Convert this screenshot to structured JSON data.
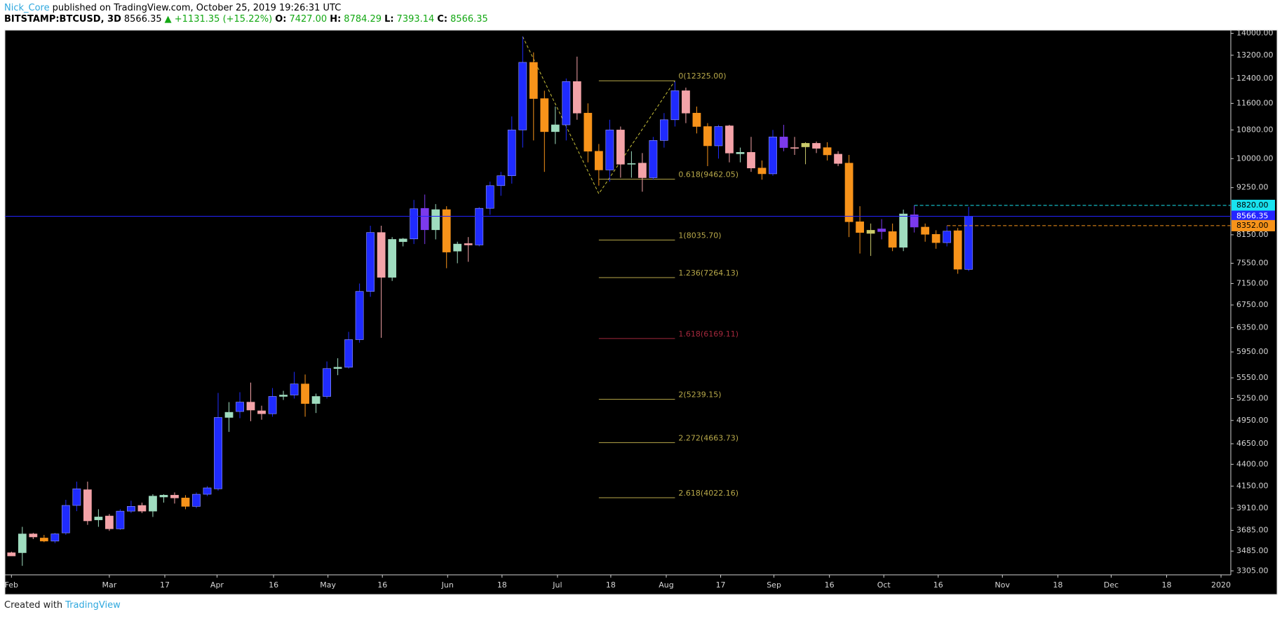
{
  "header": {
    "author": "Nick_Core",
    "published": "published on TradingView.com, October 25, 2019 19:26:31 UTC",
    "symbol": "BITSTAMP:BTCUSD, 3D",
    "price": "8566.35",
    "change": "▲ +1131.35 (+15.22%)",
    "o_label": "O:",
    "o": "7427.00",
    "h_label": "H:",
    "h": "8784.29",
    "l_label": "L:",
    "l": "7393.14",
    "c_label": "C:",
    "c": "8566.35"
  },
  "footer": {
    "created": "Created with",
    "brand": "TradingView"
  },
  "chart_data": {
    "type": "candlestick",
    "log_scale": true,
    "grid": false,
    "open": [
      3470,
      3470,
      3650,
      3610,
      3580,
      3660,
      3940,
      4110,
      3790,
      3830,
      3700,
      3880,
      3940,
      3880,
      4030,
      4050,
      4020,
      3930,
      4060,
      4120,
      4990,
      5070,
      5200,
      5080,
      5040,
      5280,
      5300,
      5460,
      5180,
      5280,
      5690,
      5710,
      6150,
      7000,
      8200,
      7270,
      8000,
      8060,
      8750,
      8260,
      8720,
      7800,
      7960,
      7930,
      8750,
      9300,
      9550,
      10800,
      12950,
      11750,
      10750,
      10950,
      12300,
      11300,
      10200,
      9700,
      10800,
      9850,
      9880,
      9500,
      10500,
      11100,
      12000,
      11300,
      10900,
      10350,
      10920,
      10130,
      10170,
      9750,
      9600,
      10600,
      10300,
      10320,
      10420,
      10300,
      10120,
      9880,
      8440,
      8180,
      8280,
      8220,
      7880,
      8600,
      8320,
      8160,
      7980,
      8240,
      7427
    ],
    "high": [
      3480,
      3720,
      3660,
      3640,
      3660,
      4000,
      4200,
      4200,
      3900,
      3850,
      3900,
      3990,
      3970,
      4060,
      4060,
      4080,
      4050,
      4080,
      4150,
      5330,
      5200,
      5340,
      5480,
      5150,
      5400,
      5360,
      5640,
      5600,
      5320,
      5800,
      5850,
      6280,
      7150,
      8350,
      8350,
      8100,
      8080,
      8950,
      9080,
      8850,
      8800,
      8000,
      8100,
      8780,
      9400,
      9650,
      11200,
      13880,
      13300,
      12000,
      11500,
      12400,
      13150,
      11600,
      10400,
      11100,
      10900,
      10200,
      10150,
      10600,
      11300,
      12300,
      12100,
      11500,
      11000,
      10950,
      10950,
      10300,
      10600,
      9950,
      10800,
      10950,
      10600,
      10450,
      10470,
      10450,
      10200,
      10100,
      8800,
      8400,
      8500,
      8400,
      8720,
      8820,
      8400,
      8250,
      8350,
      8300,
      8784.29
    ],
    "low": [
      3440,
      3350,
      3600,
      3570,
      3560,
      3640,
      3880,
      3740,
      3720,
      3680,
      3690,
      3860,
      3860,
      3820,
      3970,
      3960,
      3900,
      3910,
      4040,
      4100,
      4800,
      4980,
      4940,
      4960,
      5000,
      5230,
      5250,
      5000,
      5050,
      5250,
      5590,
      5690,
      6100,
      6900,
      6180,
      7200,
      7900,
      7950,
      7950,
      8050,
      7450,
      7550,
      7580,
      7900,
      8600,
      9050,
      9350,
      10300,
      10500,
      9650,
      10400,
      10500,
      11100,
      9900,
      9300,
      9400,
      9500,
      9500,
      9150,
      9450,
      10300,
      10900,
      11000,
      10700,
      9800,
      10000,
      9900,
      9900,
      9650,
      9450,
      9550,
      10200,
      10100,
      9850,
      10150,
      9950,
      9800,
      8100,
      7750,
      7700,
      8050,
      7800,
      7800,
      8200,
      8000,
      7850,
      7900,
      7340,
      7393.14
    ],
    "close": [
      3440,
      3650,
      3620,
      3580,
      3650,
      3940,
      4120,
      3780,
      3820,
      3700,
      3880,
      3930,
      3880,
      4040,
      4050,
      4020,
      3930,
      4060,
      4130,
      4990,
      5060,
      5200,
      5090,
      5040,
      5280,
      5300,
      5460,
      5180,
      5280,
      5690,
      5710,
      6150,
      7000,
      8200,
      7270,
      8050,
      8060,
      8740,
      8260,
      8720,
      7780,
      7950,
      7930,
      8750,
      9300,
      9550,
      10800,
      12950,
      11750,
      10750,
      10950,
      12300,
      11300,
      10200,
      9700,
      10800,
      9850,
      9870,
      9500,
      10500,
      11100,
      12000,
      11300,
      10900,
      10350,
      10900,
      10150,
      10170,
      9750,
      9600,
      10600,
      10300,
      10280,
      10420,
      10280,
      10100,
      9870,
      8440,
      8200,
      8250,
      8220,
      7880,
      8620,
      8320,
      8160,
      7980,
      8230,
      7430,
      8566.35
    ],
    "colors": [
      "#f4a3a8",
      "#9fdcbf",
      "#f4a3a8",
      "#f7931a",
      "#1f2bff",
      "#1f2bff",
      "#1f2bff",
      "#f4a3a8",
      "#9fdcbf",
      "#f4a3a8",
      "#1f2bff",
      "#1f2bff",
      "#f4a3a8",
      "#9fdcbf",
      "#9fdcbf",
      "#f4a3a8",
      "#f7931a",
      "#1f2bff",
      "#1f2bff",
      "#1f2bff",
      "#9fdcbf",
      "#1f2bff",
      "#f4a3a8",
      "#f4a3a8",
      "#1f2bff",
      "#9fdcbf",
      "#1f2bff",
      "#f7931a",
      "#9fdcbf",
      "#1f2bff",
      "#9fdcbf",
      "#1f2bff",
      "#1f2bff",
      "#1f2bff",
      "#f4a3a8",
      "#9fdcbf",
      "#9fdcbf",
      "#1f2bff",
      "#7c3aed",
      "#9fdcbf",
      "#f7931a",
      "#9fdcbf",
      "#f4a3a8",
      "#1f2bff",
      "#1f2bff",
      "#1f2bff",
      "#1f2bff",
      "#1f2bff",
      "#f7931a",
      "#f7931a",
      "#9fdcbf",
      "#1f2bff",
      "#f4a3a8",
      "#f7931a",
      "#f7931a",
      "#1f2bff",
      "#f4a3a8",
      "#9fdcbf",
      "#f4a3a8",
      "#1f2bff",
      "#1f2bff",
      "#1f2bff",
      "#f4a3a8",
      "#f7931a",
      "#f7931a",
      "#1f2bff",
      "#f4a3a8",
      "#9fdcbf",
      "#f4a3a8",
      "#f7931a",
      "#1f2bff",
      "#7c3aed",
      "#f4a3a8",
      "#c9c96a",
      "#f4a3a8",
      "#f7931a",
      "#f4a3a8",
      "#f7931a",
      "#f7931a",
      "#c9c96a",
      "#7c3aed",
      "#f7931a",
      "#9fdcbf",
      "#7c3aed",
      "#f7931a",
      "#f7931a",
      "#1f2bff",
      "#f7931a",
      "#1f2bff"
    ],
    "ylim": [
      3270,
      14120
    ],
    "yticks": [
      {
        "value": 14000,
        "label": "14000.00"
      },
      {
        "value": 13200,
        "label": "13200.00"
      },
      {
        "value": 12400,
        "label": "12400.00"
      },
      {
        "value": 11600,
        "label": "11600.00"
      },
      {
        "value": 10800,
        "label": "10800.00"
      },
      {
        "value": 10000,
        "label": "10000.00"
      },
      {
        "value": 9250,
        "label": "9250.00"
      },
      {
        "value": 8150,
        "label": "8150.00"
      },
      {
        "value": 7550,
        "label": "7550.00"
      },
      {
        "value": 7150,
        "label": "7150.00"
      },
      {
        "value": 6750,
        "label": "6750.00"
      },
      {
        "value": 6350,
        "label": "6350.00"
      },
      {
        "value": 5950,
        "label": "5950.00"
      },
      {
        "value": 5550,
        "label": "5550.00"
      },
      {
        "value": 5250,
        "label": "5250.00"
      },
      {
        "value": 4950,
        "label": "4950.00"
      },
      {
        "value": 4650,
        "label": "4650.00"
      },
      {
        "value": 4400,
        "label": "4400.00"
      },
      {
        "value": 4150,
        "label": "4150.00"
      },
      {
        "value": 3910,
        "label": "3910.00"
      },
      {
        "value": 3685,
        "label": "3685.00"
      },
      {
        "value": 3485,
        "label": "3485.00"
      },
      {
        "value": 3305,
        "label": "3305.00"
      }
    ],
    "xlim": [
      -0.6,
      112.1
    ],
    "xticks": [
      {
        "value": 0,
        "label": "Feb"
      },
      {
        "value": 9.0,
        "label": "Mar"
      },
      {
        "value": 14.1,
        "label": "17"
      },
      {
        "value": 18.9,
        "label": "Apr"
      },
      {
        "value": 24.1,
        "label": "16"
      },
      {
        "value": 29.1,
        "label": "May"
      },
      {
        "value": 34.1,
        "label": "16"
      },
      {
        "value": 40.1,
        "label": "Jun"
      },
      {
        "value": 45.1,
        "label": "18"
      },
      {
        "value": 50.2,
        "label": "Jul"
      },
      {
        "value": 55.1,
        "label": "18"
      },
      {
        "value": 60.2,
        "label": "Aug"
      },
      {
        "value": 65.2,
        "label": "17"
      },
      {
        "value": 70.1,
        "label": "Sep"
      },
      {
        "value": 75.2,
        "label": "16"
      },
      {
        "value": 80.2,
        "label": "Oct"
      },
      {
        "value": 85.2,
        "label": "16"
      },
      {
        "value": 91.1,
        "label": "Nov"
      },
      {
        "value": 96.2,
        "label": "18"
      },
      {
        "value": 101.1,
        "label": "Dec"
      },
      {
        "value": 106.2,
        "label": "18"
      },
      {
        "value": 111.2,
        "label": "2020"
      }
    ],
    "fib": {
      "x": [
        54,
        61
      ],
      "levels": [
        {
          "value": 12325.0,
          "label": "0(12325.00)",
          "color": "#b8a94a"
        },
        {
          "value": 9462.05,
          "label": "0.618(9462.05)",
          "color": "#b8a94a"
        },
        {
          "value": 8035.7,
          "label": "1(8035.70)",
          "color": "#b8a94a"
        },
        {
          "value": 7264.13,
          "label": "1.236(7264.13)",
          "color": "#b8a94a"
        },
        {
          "value": 6169.11,
          "label": "1.618(6169.11)",
          "color": "#a3283c"
        },
        {
          "value": 5239.15,
          "label": "2(5239.15)",
          "color": "#b8a94a"
        },
        {
          "value": 4663.73,
          "label": "2.272(4663.73)",
          "color": "#b8a94a"
        },
        {
          "value": 4022.16,
          "label": "2.618(4022.16)",
          "color": "#b8a94a"
        }
      ]
    },
    "zigzag": {
      "x": [
        47,
        54,
        61
      ],
      "values": [
        13880,
        9100,
        12325
      ],
      "color": "#c9c13a"
    },
    "price_lines": [
      {
        "value": 8820,
        "label": "8820.00",
        "color": "#19e3f0",
        "text_color": "#000000",
        "x": 83,
        "dashed": true
      },
      {
        "value": 8566.35,
        "label": "8566.35",
        "color": "#2424ff",
        "text_color": "#ffffff"
      },
      {
        "value": 8352,
        "label": "8352.00",
        "color": "#f7931a",
        "text_color": "#000000",
        "x": 86,
        "dashed": true
      }
    ]
  }
}
